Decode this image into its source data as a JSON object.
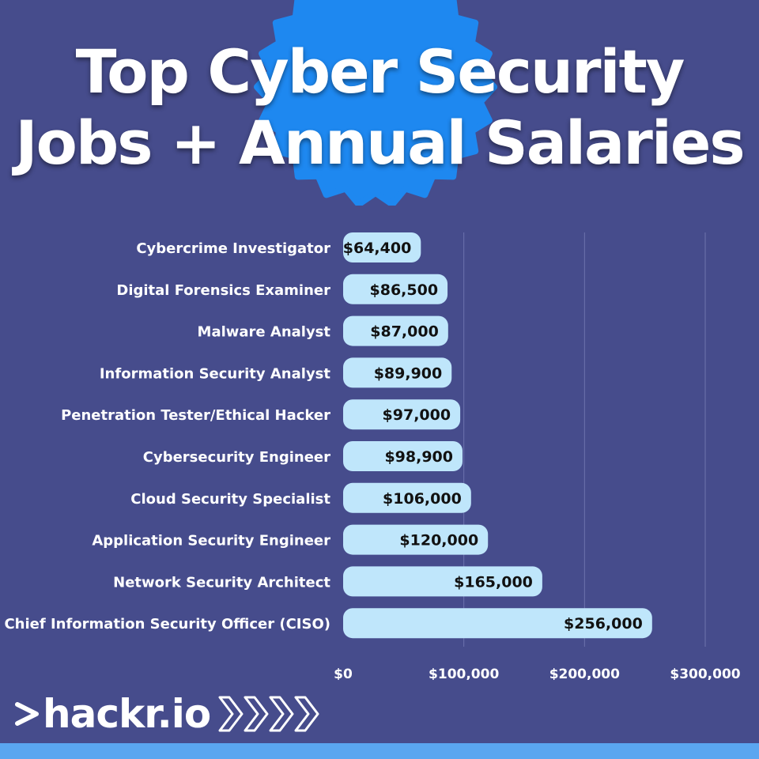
{
  "title": {
    "line1": "Top Cyber Security",
    "line2": "Jobs + Annual Salaries"
  },
  "logo": {
    "text": "hackr.io"
  },
  "colors": {
    "background": "#464c8c",
    "badge": "#1e88f0",
    "bar": "#bfe6fb",
    "footer": "#5aa6f0"
  },
  "chart_data": {
    "type": "bar",
    "orientation": "horizontal",
    "categories": [
      "Cybercrime Investigator",
      "Digital Forensics Examiner",
      "Malware Analyst",
      "Information Security Analyst",
      "Penetration Tester/Ethical Hacker",
      "Cybersecurity Engineer",
      "Cloud Security Specialist",
      "Application Security Engineer",
      "Network Security Architect",
      "Chief Information Security Officer (CISO)"
    ],
    "values": [
      64400,
      86500,
      87000,
      89900,
      97000,
      98900,
      106000,
      120000,
      165000,
      256000
    ],
    "value_labels": [
      "$64,400",
      "$86,500",
      "$87,000",
      "$89,900",
      "$97,000",
      "$98,900",
      "$106,000",
      "$120,000",
      "$165,000",
      "$256,000"
    ],
    "xlim": [
      0,
      300000
    ],
    "x_ticks": [
      0,
      100000,
      200000,
      300000
    ],
    "x_tick_labels": [
      "$0",
      "$100,000",
      "$200,000",
      "$300,000"
    ],
    "grid": true,
    "legend": "none"
  }
}
